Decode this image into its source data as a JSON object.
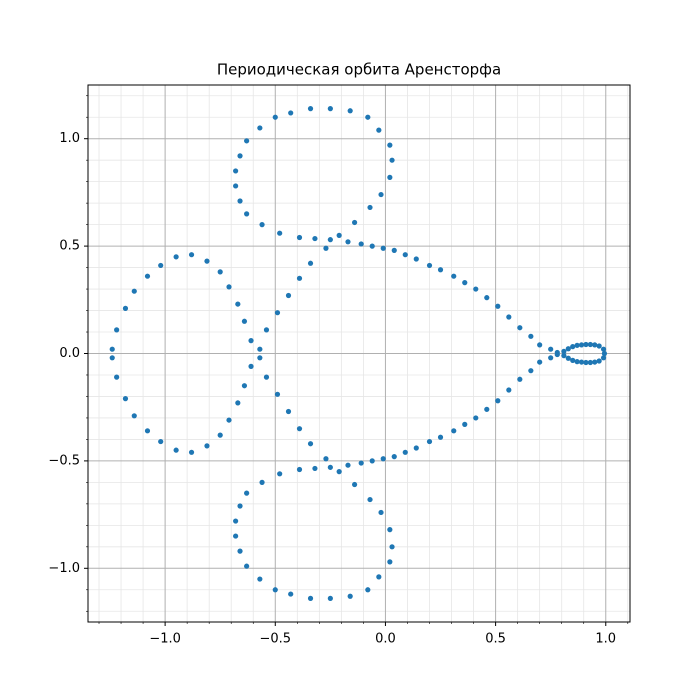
{
  "chart_data": {
    "type": "scatter",
    "title": "Периодическая орбита Аренсторфа",
    "color": "#1f77b4",
    "grid": true,
    "minor_grid": true,
    "xlim": [
      -1.35,
      1.11
    ],
    "ylim": [
      -1.25,
      1.25
    ],
    "xticks": [
      {
        "value": -1.0,
        "label": "−1.0"
      },
      {
        "value": -0.5,
        "label": "−0.5"
      },
      {
        "value": 0.0,
        "label": "0.0"
      },
      {
        "value": 0.5,
        "label": "0.5"
      },
      {
        "value": 1.0,
        "label": "1.0"
      }
    ],
    "yticks": [
      {
        "value": -1.0,
        "label": "−1.0"
      },
      {
        "value": -0.5,
        "label": "−0.5"
      },
      {
        "value": 0.0,
        "label": "0.0"
      },
      {
        "value": 0.5,
        "label": "0.5"
      },
      {
        "value": 1.0,
        "label": "1.0"
      }
    ],
    "xminorticks": [
      -1.3,
      -1.2,
      -1.1,
      -0.9,
      -0.8,
      -0.7,
      -0.6,
      -0.4,
      -0.3,
      -0.2,
      -0.1,
      0.1,
      0.2,
      0.3,
      0.4,
      0.6,
      0.7,
      0.8,
      0.9,
      1.1
    ],
    "yminorticks": [
      -1.2,
      -1.1,
      -0.9,
      -0.8,
      -0.7,
      -0.6,
      -0.4,
      -0.3,
      -0.2,
      -0.1,
      0.1,
      0.2,
      0.3,
      0.4,
      0.6,
      0.7,
      0.8,
      0.9,
      1.1,
      1.2
    ],
    "x": [
      0.994,
      0.99,
      0.97,
      0.95,
      0.93,
      0.91,
      0.89,
      0.87,
      0.85,
      0.83,
      0.81,
      0.78,
      0.75,
      0.7,
      0.66,
      0.61,
      0.56,
      0.51,
      0.46,
      0.41,
      0.36,
      0.31,
      0.25,
      0.2,
      0.14,
      0.09,
      0.04,
      -0.01,
      -0.06,
      -0.11,
      -0.17,
      -0.25,
      -0.32,
      -0.39,
      -0.48,
      -0.56,
      -0.63,
      -0.66,
      -0.68,
      -0.68,
      -0.66,
      -0.63,
      -0.57,
      -0.5,
      -0.43,
      -0.34,
      -0.25,
      -0.16,
      -0.08,
      -0.03,
      0.02,
      0.03,
      0.02,
      -0.02,
      -0.07,
      -0.14,
      -0.21,
      -0.27,
      -0.34,
      -0.39,
      -0.44,
      -0.49,
      -0.54,
      -0.57,
      -0.61,
      -0.64,
      -0.67,
      -0.71,
      -0.75,
      -0.81,
      -0.88,
      -0.95,
      -1.02,
      -1.08,
      -1.14,
      -1.18,
      -1.22,
      -1.24,
      -1.24,
      -1.22,
      -1.18,
      -1.14,
      -1.08,
      -1.02,
      -0.95,
      -0.88,
      -0.81,
      -0.75,
      -0.71,
      -0.67,
      -0.64,
      -0.61,
      -0.57,
      -0.54,
      -0.49,
      -0.44,
      -0.39,
      -0.34,
      -0.27,
      -0.21,
      -0.14,
      -0.07,
      -0.02,
      0.02,
      0.03,
      0.02,
      -0.03,
      -0.08,
      -0.16,
      -0.25,
      -0.34,
      -0.43,
      -0.5,
      -0.57,
      -0.63,
      -0.66,
      -0.68,
      -0.68,
      -0.66,
      -0.63,
      -0.56,
      -0.48,
      -0.39,
      -0.32,
      -0.25,
      -0.17,
      -0.11,
      -0.06,
      -0.01,
      0.04,
      0.09,
      0.14,
      0.2,
      0.25,
      0.31,
      0.36,
      0.41,
      0.46,
      0.51,
      0.56,
      0.61,
      0.66,
      0.7,
      0.75,
      0.78,
      0.81,
      0.83,
      0.85,
      0.87,
      0.89,
      0.91,
      0.93,
      0.95,
      0.97,
      0.99
    ],
    "values": [
      0,
      -0.02,
      -0.035,
      -0.04,
      -0.042,
      -0.042,
      -0.04,
      -0.038,
      -0.032,
      -0.022,
      -0.01,
      0.005,
      0.02,
      0.04,
      0.08,
      0.12,
      0.17,
      0.22,
      0.26,
      0.3,
      0.33,
      0.36,
      0.39,
      0.41,
      0.44,
      0.46,
      0.48,
      0.49,
      0.5,
      0.51,
      0.52,
      0.53,
      0.535,
      0.54,
      0.56,
      0.6,
      0.65,
      0.71,
      0.78,
      0.85,
      0.92,
      0.99,
      1.05,
      1.1,
      1.12,
      1.14,
      1.14,
      1.13,
      1.1,
      1.04,
      0.97,
      0.9,
      0.82,
      0.74,
      0.68,
      0.61,
      0.55,
      0.49,
      0.42,
      0.35,
      0.27,
      0.19,
      0.11,
      0.02,
      -0.06,
      -0.15,
      -0.23,
      -0.31,
      -0.38,
      -0.43,
      -0.46,
      -0.45,
      -0.41,
      -0.36,
      -0.29,
      -0.21,
      -0.11,
      -0.02,
      0.02,
      0.11,
      0.21,
      0.29,
      0.36,
      0.41,
      0.45,
      0.46,
      0.43,
      0.38,
      0.31,
      0.23,
      0.15,
      0.06,
      -0.02,
      -0.11,
      -0.19,
      -0.27,
      -0.35,
      -0.42,
      -0.49,
      -0.55,
      -0.61,
      -0.68,
      -0.74,
      -0.82,
      -0.9,
      -0.97,
      -1.04,
      -1.1,
      -1.13,
      -1.14,
      -1.14,
      -1.12,
      -1.1,
      -1.05,
      -0.99,
      -0.92,
      -0.85,
      -0.78,
      -0.71,
      -0.65,
      -0.6,
      -0.56,
      -0.54,
      -0.535,
      -0.53,
      -0.52,
      -0.51,
      -0.5,
      -0.49,
      -0.48,
      -0.46,
      -0.44,
      -0.41,
      -0.39,
      -0.36,
      -0.33,
      -0.3,
      -0.26,
      -0.22,
      -0.17,
      -0.12,
      -0.08,
      -0.04,
      -0.02,
      -0.005,
      0.01,
      0.022,
      0.032,
      0.038,
      0.04,
      0.042,
      0.042,
      0.04,
      0.035,
      0.02
    ]
  }
}
